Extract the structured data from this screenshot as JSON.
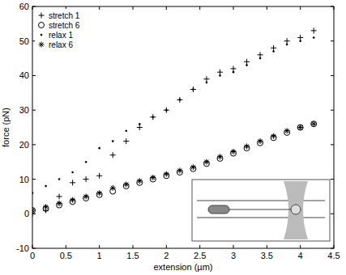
{
  "chart_data": {
    "type": "scatter",
    "x_label": "extension (µm)",
    "y_label": "force (pN)",
    "x": [
      0,
      0.2,
      0.4,
      0.6,
      0.8,
      1.0,
      1.2,
      1.4,
      1.6,
      1.8,
      2.0,
      2.2,
      2.4,
      2.6,
      2.8,
      3.0,
      3.2,
      3.4,
      3.6,
      3.8,
      4.0,
      4.2
    ],
    "series": [
      {
        "name": "stretch 1",
        "color": "#000000",
        "marker": "plus",
        "values": [
          0,
          1,
          5,
          9,
          10,
          11,
          17,
          21,
          25,
          28,
          30,
          33,
          36,
          39,
          41,
          42,
          44,
          46,
          48,
          50,
          51,
          53
        ]
      },
      {
        "name": "stretch 6",
        "color": "#000000",
        "marker": "circle",
        "values": [
          1,
          1.5,
          2.5,
          3.5,
          4.5,
          5.5,
          6.5,
          8,
          9,
          10,
          11,
          12,
          13,
          14.5,
          16,
          17.5,
          19,
          20.5,
          22,
          23.5,
          25,
          26
        ]
      },
      {
        "name": "relax 1",
        "color": "#000000",
        "marker": "point",
        "values": [
          6,
          8,
          10,
          12,
          15,
          19,
          21,
          24,
          26,
          28,
          30,
          33,
          36,
          38,
          40,
          41,
          43,
          45,
          47,
          49,
          50,
          51
        ]
      },
      {
        "name": "relax 6",
        "color": "#000000",
        "marker": "star",
        "values": [
          1,
          2,
          3,
          4,
          5,
          6,
          7.5,
          8.5,
          9.5,
          10.5,
          11.5,
          12.5,
          13.5,
          15,
          16.5,
          18,
          19.5,
          21,
          22.5,
          24,
          25,
          26
        ]
      }
    ],
    "xlim": [
      0,
      4.5
    ],
    "ylim": [
      -10,
      60
    ],
    "xticks": [
      0,
      0.5,
      1,
      1.5,
      2,
      2.5,
      3,
      3.5,
      4,
      4.5
    ],
    "yticks": [
      -10,
      0,
      10,
      20,
      30,
      40,
      50,
      60
    ],
    "grid": false,
    "legend": "top-left"
  }
}
